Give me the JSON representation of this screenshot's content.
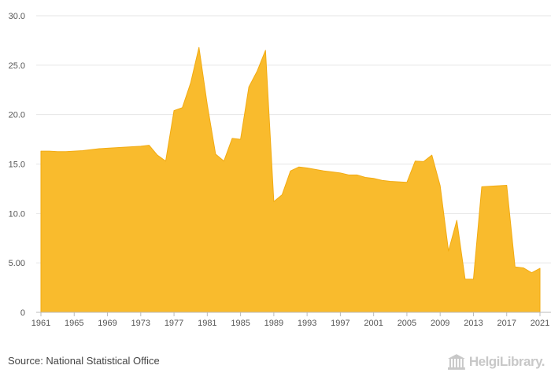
{
  "chart_data": {
    "type": "area",
    "title": "",
    "xlabel": "",
    "ylabel": "",
    "fill_color": "#F9BB2D",
    "xlim": [
      1961,
      2021
    ],
    "ylim": [
      0,
      30
    ],
    "y_ticks": [
      0,
      5,
      10,
      15,
      20,
      25,
      30
    ],
    "y_tick_labels": [
      "0",
      "5.00",
      "10.0",
      "15.0",
      "20.0",
      "25.0",
      "30.0"
    ],
    "x_tick_labels": [
      "1961",
      "1965",
      "1969",
      "1973",
      "1977",
      "1981",
      "1985",
      "1989",
      "1993",
      "1997",
      "2001",
      "2005",
      "2009",
      "2013",
      "2017",
      "2021"
    ],
    "grid": true,
    "x": [
      1961,
      1962,
      1963,
      1964,
      1965,
      1966,
      1967,
      1968,
      1969,
      1970,
      1971,
      1972,
      1973,
      1974,
      1975,
      1976,
      1977,
      1978,
      1979,
      1980,
      1981,
      1982,
      1983,
      1984,
      1985,
      1986,
      1987,
      1988,
      1989,
      1990,
      1991,
      1992,
      1993,
      1994,
      1995,
      1996,
      1997,
      1998,
      1999,
      2000,
      2001,
      2002,
      2003,
      2004,
      2005,
      2006,
      2007,
      2008,
      2009,
      2010,
      2011,
      2012,
      2013,
      2014,
      2015,
      2016,
      2017,
      2018,
      2019,
      2020,
      2021
    ],
    "values": [
      16.3,
      16.3,
      16.25,
      16.25,
      16.3,
      16.35,
      16.45,
      16.55,
      16.6,
      16.65,
      16.7,
      16.75,
      16.8,
      16.9,
      15.9,
      15.3,
      20.4,
      20.7,
      23.2,
      26.8,
      21.0,
      16.0,
      15.3,
      17.6,
      17.5,
      22.8,
      24.4,
      26.5,
      11.2,
      11.9,
      14.3,
      14.7,
      14.6,
      14.45,
      14.3,
      14.2,
      14.1,
      13.9,
      13.9,
      13.65,
      13.55,
      13.35,
      13.25,
      13.2,
      13.15,
      15.3,
      15.25,
      15.9,
      12.8,
      6.2,
      9.3,
      3.35,
      3.35,
      12.7,
      12.75,
      12.8,
      12.85,
      4.6,
      4.5,
      4.0,
      4.45
    ]
  },
  "footer": {
    "source": "Source: National Statistical Office",
    "logo_text": "HelgiLibrary."
  }
}
